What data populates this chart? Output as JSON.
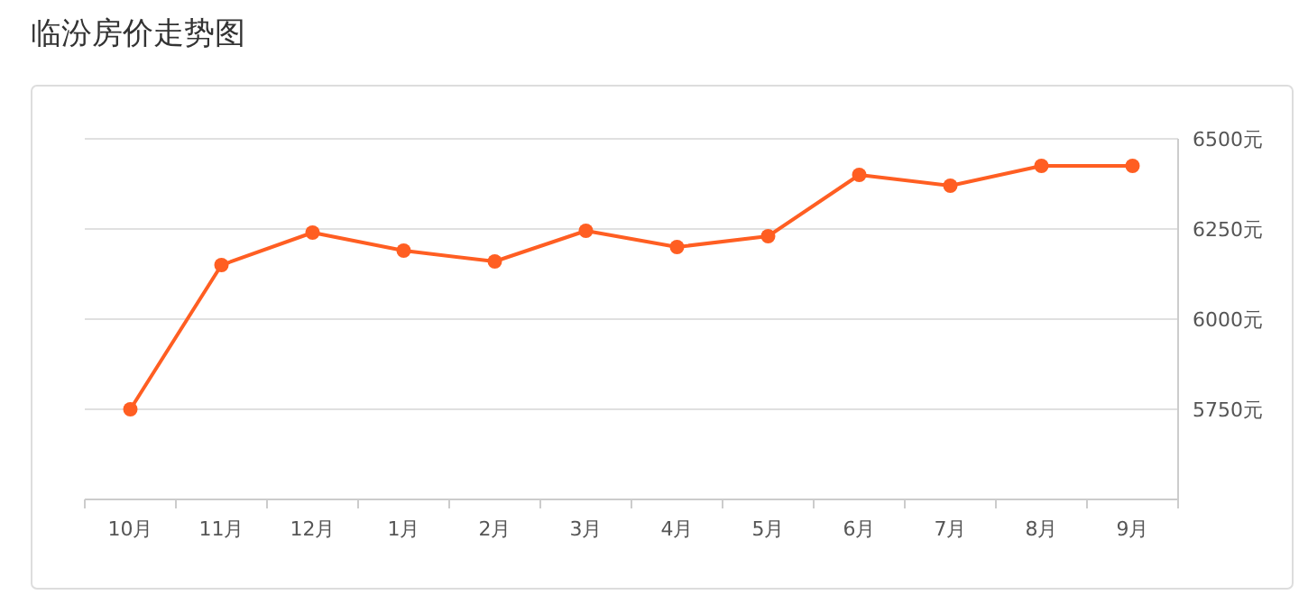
{
  "chart_data": {
    "type": "line",
    "title": "临汾房价走势图",
    "categories": [
      "10月",
      "11月",
      "12月",
      "1月",
      "2月",
      "3月",
      "4月",
      "5月",
      "6月",
      "7月",
      "8月",
      "9月"
    ],
    "series": [
      {
        "color": "#ff5e22",
        "values": [
          5750,
          6150,
          6240,
          6190,
          6160,
          6245,
          6200,
          6230,
          6400,
          6370,
          6425,
          6425
        ]
      }
    ],
    "ylim": [
      5500,
      6500
    ],
    "yticks": [
      {
        "value": 5500,
        "label": null
      },
      {
        "value": 5750,
        "label": "5750元"
      },
      {
        "value": 6000,
        "label": "6000元"
      },
      {
        "value": 6250,
        "label": "6250元"
      },
      {
        "value": 6500,
        "label": "6500元"
      }
    ],
    "grid": "y",
    "marker": "circle",
    "line_style": "solid"
  }
}
